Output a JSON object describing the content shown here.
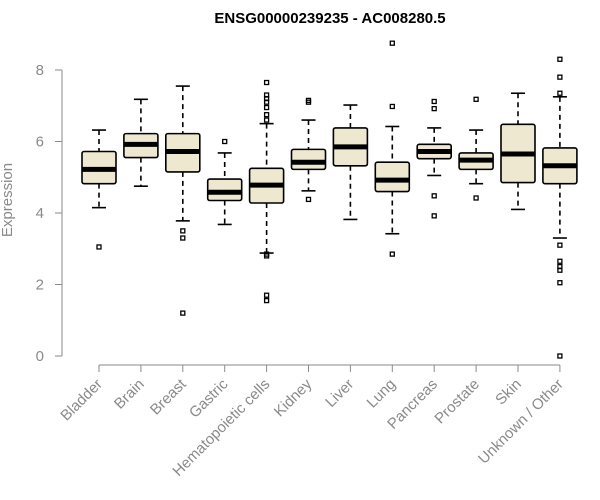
{
  "chart_data": {
    "type": "boxplot",
    "title": "ENSG00000239235 - AC008280.5",
    "ylabel": "Expression",
    "ylim": [
      0,
      8
    ],
    "yticks": [
      0,
      2,
      4,
      6,
      8
    ],
    "box_fill": "#efe8d0",
    "categories": [
      "Bladder",
      "Brain",
      "Breast",
      "Gastric",
      "Hematopoietic cells",
      "Kidney",
      "Liver",
      "Lung",
      "Pancreas",
      "Prostate",
      "Skin",
      "Unknown / Other"
    ],
    "boxes": [
      {
        "category": "Bladder",
        "whisker_low": 4.15,
        "q1": 4.82,
        "median": 5.22,
        "q3": 5.72,
        "whisker_high": 6.32,
        "outliers": [
          3.05
        ]
      },
      {
        "category": "Brain",
        "whisker_low": 4.75,
        "q1": 5.55,
        "median": 5.92,
        "q3": 6.22,
        "whisker_high": 7.18,
        "outliers": []
      },
      {
        "category": "Breast",
        "whisker_low": 3.78,
        "q1": 5.15,
        "median": 5.72,
        "q3": 6.22,
        "whisker_high": 7.55,
        "outliers": [
          3.5,
          3.3,
          1.2
        ]
      },
      {
        "category": "Gastric",
        "whisker_low": 3.68,
        "q1": 4.35,
        "median": 4.58,
        "q3": 4.95,
        "whisker_high": 5.68,
        "outliers": [
          6.0
        ]
      },
      {
        "category": "Hematopoietic cells",
        "whisker_low": 2.88,
        "q1": 4.28,
        "median": 4.78,
        "q3": 5.25,
        "whisker_high": 6.5,
        "outliers": [
          7.65,
          7.3,
          7.2,
          7.1,
          6.95,
          6.75,
          6.6,
          2.85,
          2.8,
          1.7,
          1.55
        ]
      },
      {
        "category": "Kidney",
        "whisker_low": 4.62,
        "q1": 5.22,
        "median": 5.42,
        "q3": 5.78,
        "whisker_high": 6.6,
        "outliers": [
          7.15,
          7.1,
          4.38
        ]
      },
      {
        "category": "Liver",
        "whisker_low": 3.82,
        "q1": 5.32,
        "median": 5.85,
        "q3": 6.38,
        "whisker_high": 7.02,
        "outliers": []
      },
      {
        "category": "Lung",
        "whisker_low": 3.42,
        "q1": 4.6,
        "median": 4.92,
        "q3": 5.42,
        "whisker_high": 6.42,
        "outliers": [
          8.75,
          6.98,
          2.85
        ]
      },
      {
        "category": "Pancreas",
        "whisker_low": 5.05,
        "q1": 5.52,
        "median": 5.72,
        "q3": 5.92,
        "whisker_high": 6.38,
        "outliers": [
          7.12,
          6.92,
          4.48,
          3.92
        ]
      },
      {
        "category": "Prostate",
        "whisker_low": 4.82,
        "q1": 5.22,
        "median": 5.48,
        "q3": 5.68,
        "whisker_high": 6.32,
        "outliers": [
          7.18,
          4.42
        ]
      },
      {
        "category": "Skin",
        "whisker_low": 4.1,
        "q1": 4.85,
        "median": 5.65,
        "q3": 6.48,
        "whisker_high": 7.35,
        "outliers": []
      },
      {
        "category": "Unknown / Other",
        "whisker_low": 3.3,
        "q1": 4.82,
        "median": 5.32,
        "q3": 5.82,
        "whisker_high": 7.25,
        "outliers": [
          8.3,
          7.8,
          7.35,
          3.1,
          2.65,
          2.5,
          2.4,
          2.05,
          0.0
        ]
      }
    ]
  }
}
